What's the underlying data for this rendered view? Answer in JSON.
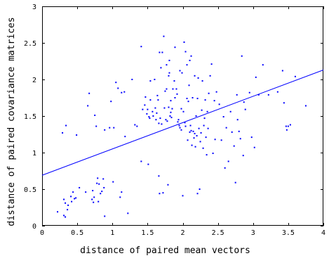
{
  "chart_data": {
    "type": "scatter",
    "title": "",
    "xlabel": "distance of paired mean vectors",
    "ylabel": "distance of paired covariance matrices",
    "xlim": [
      0,
      4
    ],
    "ylim": [
      0,
      3
    ],
    "x_ticks": [
      0,
      0.5,
      1,
      1.5,
      2,
      2.5,
      3,
      3.5,
      4
    ],
    "x_tick_labels": [
      "0",
      "0.5",
      "1",
      "1.5",
      "2",
      "2.5",
      "3",
      "3.5",
      "4"
    ],
    "y_ticks": [
      0,
      0.5,
      1,
      1.5,
      2,
      2.5,
      3
    ],
    "y_tick_labels": [
      "0",
      "0.5",
      "1",
      "1.5",
      "2",
      "2.5",
      "3"
    ],
    "grid": false,
    "legend": "none",
    "colors": {
      "points": "#0000ff",
      "fit_line": "#0000ff",
      "axes": "#000000"
    },
    "series": [
      {
        "kind": "points",
        "points": [
          [
            0.22,
            0.19
          ],
          [
            0.29,
            1.27
          ],
          [
            0.31,
            0.14
          ],
          [
            0.31,
            0.36
          ],
          [
            0.33,
            0.31
          ],
          [
            0.33,
            0.12
          ],
          [
            0.34,
            1.37
          ],
          [
            0.36,
            0.22
          ],
          [
            0.37,
            0.28
          ],
          [
            0.41,
            0.4
          ],
          [
            0.42,
            0.33
          ],
          [
            0.44,
            0.46
          ],
          [
            0.46,
            0.37
          ],
          [
            0.48,
            0.38
          ],
          [
            0.49,
            1.24
          ],
          [
            0.53,
            0.52
          ],
          [
            0.62,
            0.46
          ],
          [
            0.65,
            1.64
          ],
          [
            0.67,
            1.81
          ],
          [
            0.71,
            0.36
          ],
          [
            0.72,
            0.48
          ],
          [
            0.73,
            0.32
          ],
          [
            0.74,
            0.39
          ],
          [
            0.75,
            1.51
          ],
          [
            0.77,
            1.36
          ],
          [
            0.78,
            0.58
          ],
          [
            0.79,
            0.65
          ],
          [
            0.8,
            0.33
          ],
          [
            0.81,
            0.57
          ],
          [
            0.83,
            0.44
          ],
          [
            0.85,
            0.47
          ],
          [
            0.87,
            0.64
          ],
          [
            0.88,
            0.52
          ],
          [
            0.89,
            1.31
          ],
          [
            0.89,
            0.13
          ],
          [
            0.96,
            1.34
          ],
          [
            0.98,
            1.7
          ],
          [
            1.01,
            0.6
          ],
          [
            1.02,
            1.34
          ],
          [
            1.05,
            1.96
          ],
          [
            1.08,
            1.88
          ],
          [
            1.11,
            0.39
          ],
          [
            1.13,
            0.46
          ],
          [
            1.13,
            1.82
          ],
          [
            1.17,
            1.83
          ],
          [
            1.18,
            1.22
          ],
          [
            1.22,
            0.17
          ],
          [
            1.28,
            2.0
          ],
          [
            1.32,
            1.38
          ],
          [
            1.35,
            1.36
          ],
          [
            1.41,
            0.88
          ],
          [
            1.41,
            2.45
          ],
          [
            1.43,
            1.59
          ],
          [
            1.46,
            1.65
          ],
          [
            1.47,
            1.76
          ],
          [
            1.49,
            1.53
          ],
          [
            1.5,
            1.59
          ],
          [
            1.51,
            0.84
          ],
          [
            1.52,
            1.49
          ],
          [
            1.53,
            1.47
          ],
          [
            1.54,
            1.72
          ],
          [
            1.54,
            1.98
          ],
          [
            1.57,
            1.56
          ],
          [
            1.58,
            1.5
          ],
          [
            1.6,
            2.0
          ],
          [
            1.61,
            1.61
          ],
          [
            1.62,
            1.45
          ],
          [
            1.63,
            1.54
          ],
          [
            1.64,
            1.78
          ],
          [
            1.65,
            1.72
          ],
          [
            1.66,
            1.4
          ],
          [
            1.66,
            0.68
          ],
          [
            1.67,
            0.44
          ],
          [
            1.67,
            2.37
          ],
          [
            1.68,
            1.47
          ],
          [
            1.69,
            2.16
          ],
          [
            1.7,
            1.39
          ],
          [
            1.71,
            2.37
          ],
          [
            1.72,
            0.45
          ],
          [
            1.73,
            2.59
          ],
          [
            1.74,
            1.61
          ],
          [
            1.75,
            1.84
          ],
          [
            1.76,
            1.45
          ],
          [
            1.77,
            1.87
          ],
          [
            1.77,
            2.2
          ],
          [
            1.78,
            1.43
          ],
          [
            1.79,
            0.56
          ],
          [
            1.8,
            1.62
          ],
          [
            1.8,
            2.05
          ],
          [
            1.81,
            2.09
          ],
          [
            1.81,
            2.26
          ],
          [
            1.82,
            1.5
          ],
          [
            1.83,
            1.55
          ],
          [
            1.83,
            1.71
          ],
          [
            1.84,
            1.48
          ],
          [
            1.85,
            1.6
          ],
          [
            1.86,
            1.87
          ],
          [
            1.88,
            1.98
          ],
          [
            1.89,
            1.75
          ],
          [
            1.89,
            2.44
          ],
          [
            1.91,
            1.87
          ],
          [
            1.92,
            1.8
          ],
          [
            1.93,
            1.42
          ],
          [
            1.94,
            1.45
          ],
          [
            1.95,
            1.37
          ],
          [
            1.96,
            1.34
          ],
          [
            1.96,
            2.12
          ],
          [
            1.98,
            1.31
          ],
          [
            1.98,
            1.6
          ],
          [
            1.99,
            2.09
          ],
          [
            2.0,
            0.41
          ],
          [
            2.01,
            1.56
          ],
          [
            2.02,
            2.51
          ],
          [
            2.03,
            1.41
          ],
          [
            2.04,
            1.36
          ],
          [
            2.04,
            2.38
          ],
          [
            2.06,
            2.2
          ],
          [
            2.06,
            1.74
          ],
          [
            2.07,
            1.17
          ],
          [
            2.08,
            1.7
          ],
          [
            2.09,
            1.92
          ],
          [
            2.1,
            2.26
          ],
          [
            2.1,
            1.28
          ],
          [
            2.11,
            1.37
          ],
          [
            2.12,
            1.3
          ],
          [
            2.12,
            2.32
          ],
          [
            2.13,
            1.1
          ],
          [
            2.14,
            1.75
          ],
          [
            2.15,
            1.29
          ],
          [
            2.16,
            1.2
          ],
          [
            2.17,
            1.26
          ],
          [
            2.17,
            2.05
          ],
          [
            2.18,
            1.08
          ],
          [
            2.19,
            1.5
          ],
          [
            2.2,
            1.23
          ],
          [
            2.21,
            1.74
          ],
          [
            2.21,
            0.44
          ],
          [
            2.22,
            2.02
          ],
          [
            2.23,
            1.33
          ],
          [
            2.24,
            0.5
          ],
          [
            2.25,
            1.15
          ],
          [
            2.26,
            1.27
          ],
          [
            2.27,
            1.58
          ],
          [
            2.28,
            1.98
          ],
          [
            2.29,
            1.06
          ],
          [
            2.3,
            1.37
          ],
          [
            2.31,
            1.47
          ],
          [
            2.32,
            1.72
          ],
          [
            2.33,
            1.21
          ],
          [
            2.34,
            0.97
          ],
          [
            2.35,
            1.56
          ],
          [
            2.36,
            1.33
          ],
          [
            2.37,
            1.81
          ],
          [
            2.39,
            2.05
          ],
          [
            2.41,
            2.21
          ],
          [
            2.43,
            0.99
          ],
          [
            2.45,
            1.71
          ],
          [
            2.46,
            1.18
          ],
          [
            2.48,
            1.83
          ],
          [
            2.52,
            1.66
          ],
          [
            2.55,
            1.17
          ],
          [
            2.58,
            1.49
          ],
          [
            2.6,
            0.79
          ],
          [
            2.62,
            1.34
          ],
          [
            2.65,
            0.88
          ],
          [
            2.68,
            1.56
          ],
          [
            2.7,
            1.28
          ],
          [
            2.73,
            1.09
          ],
          [
            2.75,
            0.59
          ],
          [
            2.77,
            1.79
          ],
          [
            2.78,
            1.45
          ],
          [
            2.8,
            1.29
          ],
          [
            2.82,
            1.19
          ],
          [
            2.84,
            2.32
          ],
          [
            2.86,
            0.96
          ],
          [
            2.87,
            1.69
          ],
          [
            2.89,
            1.59
          ],
          [
            2.95,
            1.82
          ],
          [
            2.98,
            1.21
          ],
          [
            3.02,
            1.07
          ],
          [
            3.04,
            2.03
          ],
          [
            3.08,
            1.79
          ],
          [
            3.14,
            2.2
          ],
          [
            3.22,
            1.79
          ],
          [
            3.35,
            1.83
          ],
          [
            3.42,
            2.12
          ],
          [
            3.44,
            1.68
          ],
          [
            3.47,
            1.36
          ],
          [
            3.48,
            1.31
          ],
          [
            3.5,
            1.36
          ],
          [
            3.53,
            1.38
          ],
          [
            3.6,
            2.04
          ],
          [
            3.75,
            1.64
          ]
        ]
      },
      {
        "kind": "fit_line",
        "points": [
          [
            0,
            0.69
          ],
          [
            4,
            2.13
          ]
        ]
      }
    ]
  }
}
